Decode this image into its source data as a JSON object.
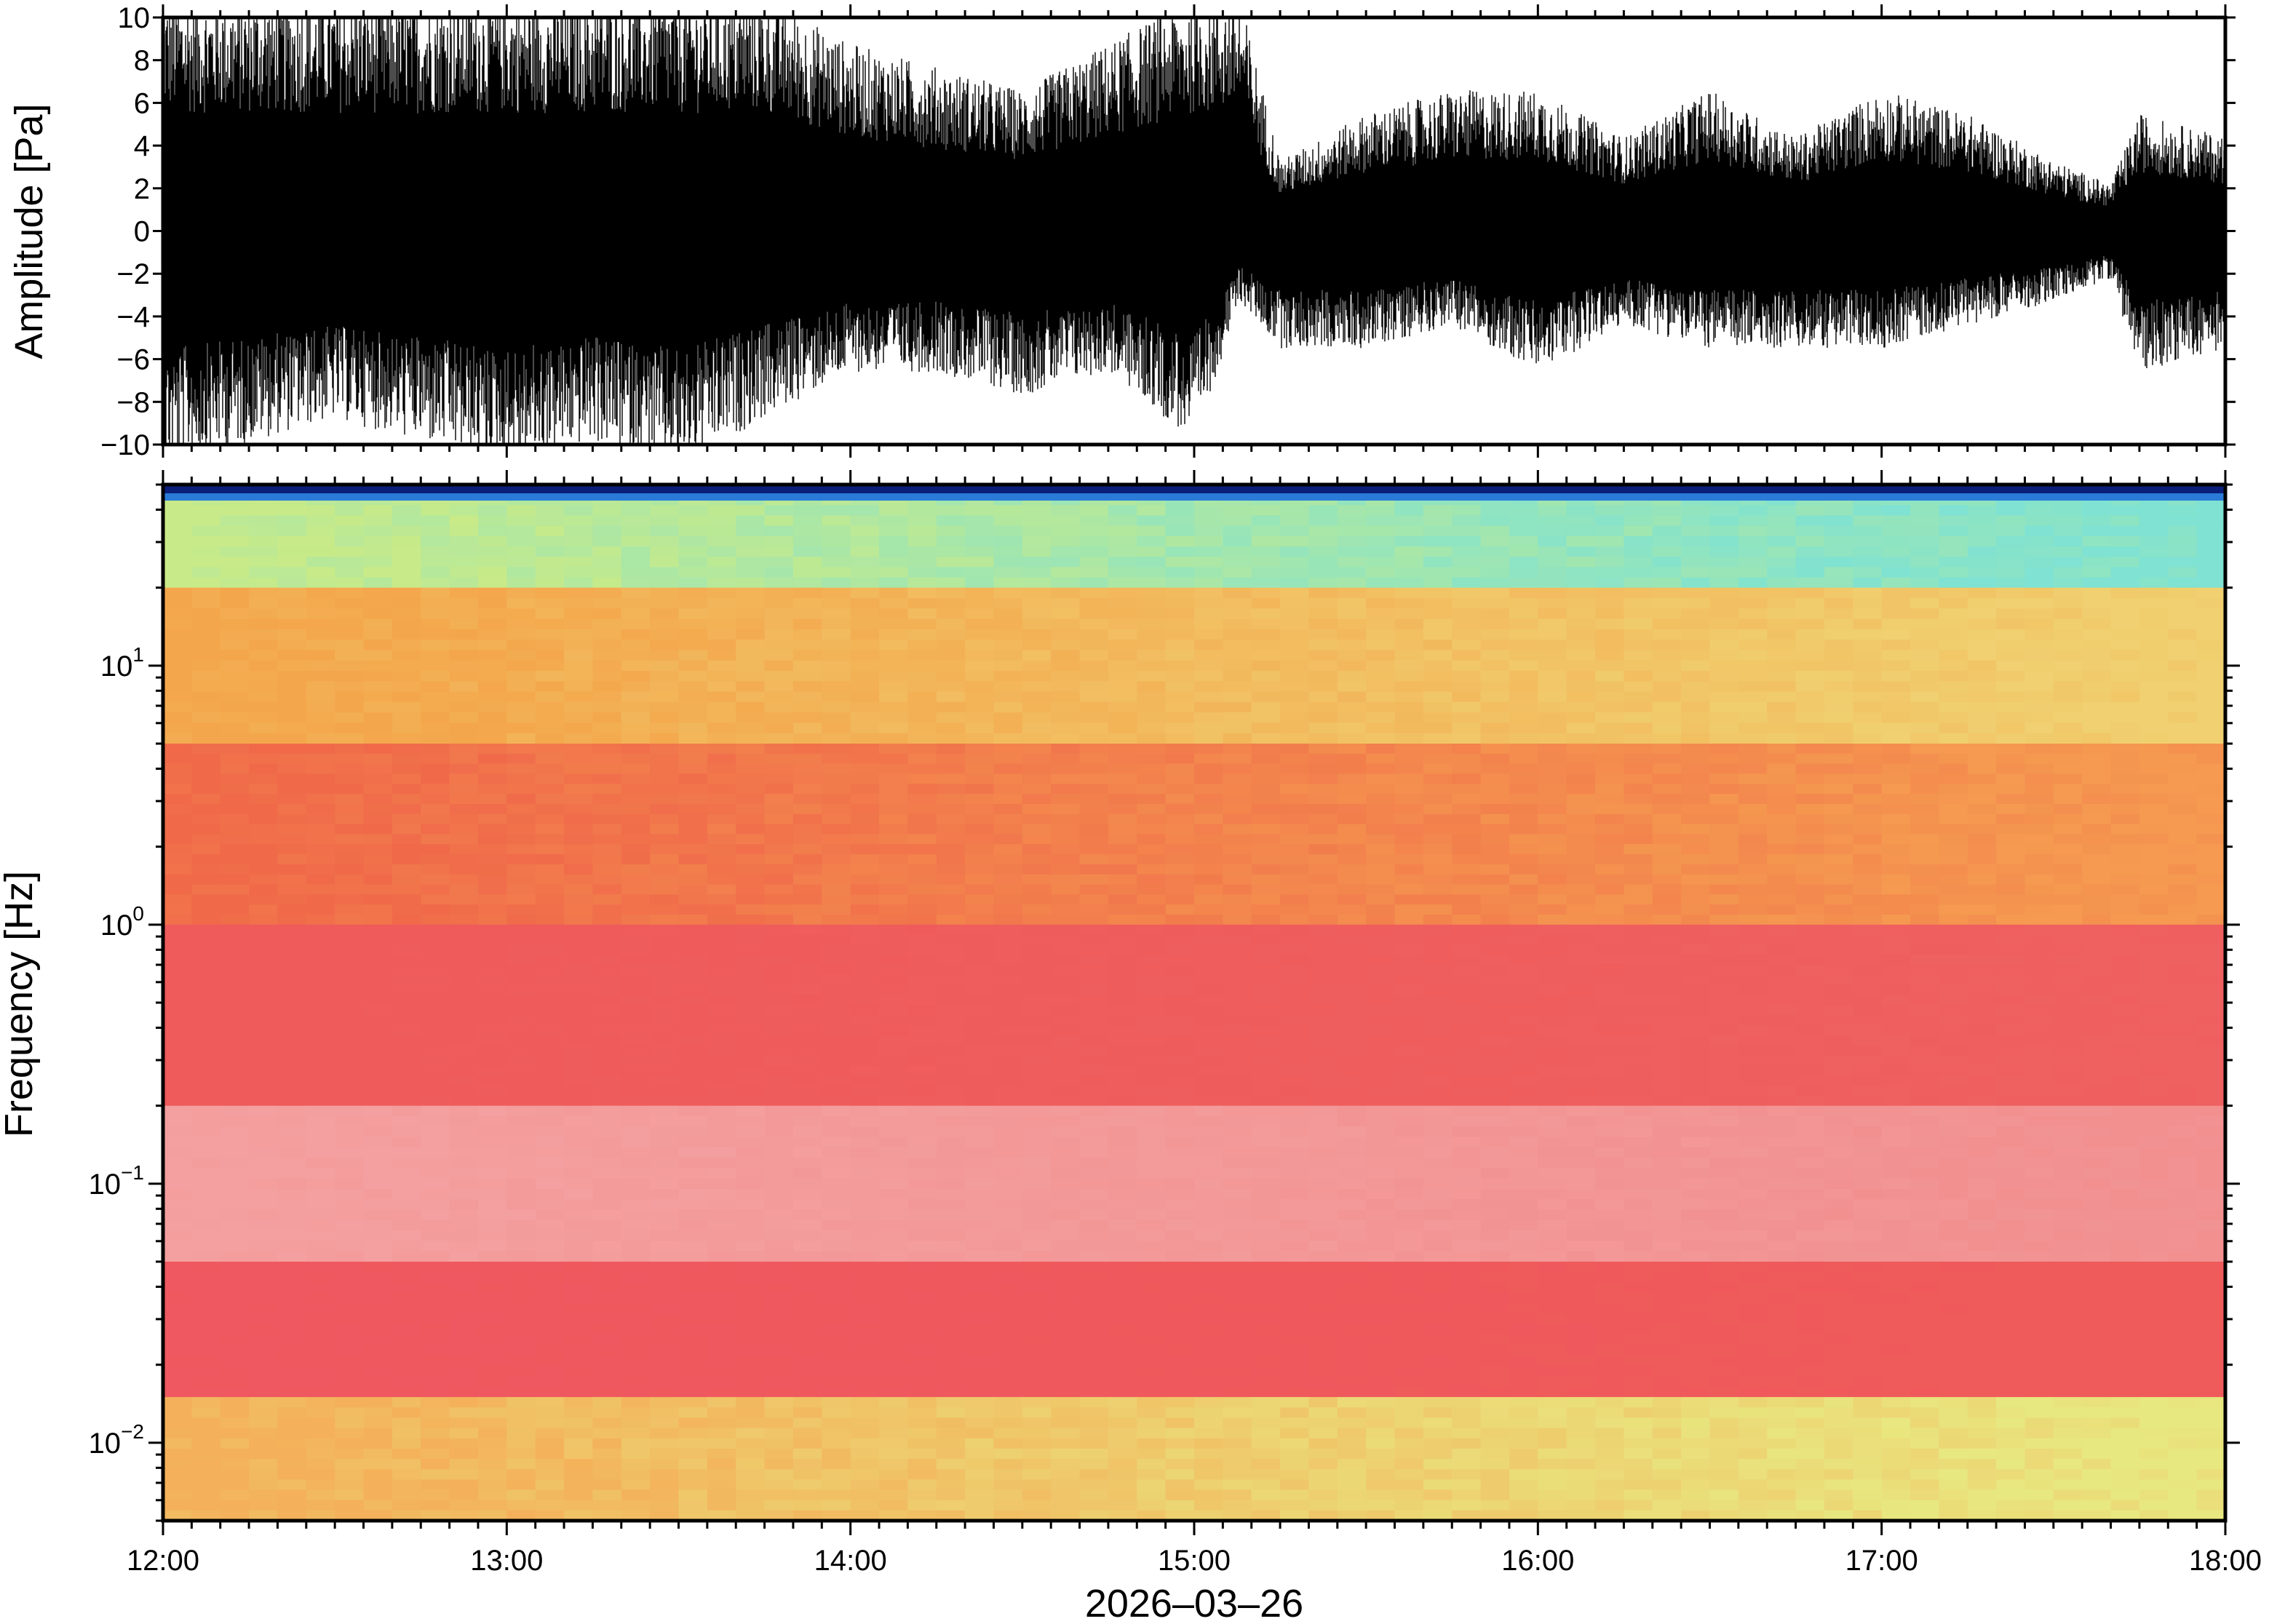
{
  "chart_data": [
    {
      "panel": "waveform",
      "type": "line",
      "title": "",
      "xlabel": "",
      "ylabel": "Amplitude [Pa]",
      "ylim": [
        -10,
        10
      ],
      "yticks": [
        -10,
        -8,
        -6,
        -4,
        -2,
        0,
        2,
        4,
        6,
        8,
        10
      ],
      "ytick_labels": [
        "−10",
        "−8",
        "−6",
        "−4",
        "−2",
        "0",
        "2",
        "4",
        "6",
        "8",
        "10"
      ],
      "xlim": [
        "12:00",
        "18:00"
      ],
      "series": [
        {
          "color": "#000000",
          "x": [
            "12:00",
            "12:15",
            "12:30",
            "12:45",
            "13:00",
            "13:15",
            "13:30",
            "13:45",
            "14:00",
            "14:15",
            "14:30",
            "14:45",
            "15:00",
            "15:08",
            "15:15",
            "15:30",
            "15:45",
            "16:00",
            "16:15",
            "16:30",
            "16:45",
            "17:00",
            "17:15",
            "17:30",
            "17:40",
            "17:45",
            "18:00"
          ],
          "upper_envelope": [
            10,
            10,
            10,
            10,
            10,
            10,
            10,
            10,
            8,
            7,
            6,
            8,
            10,
            10,
            3,
            5,
            6,
            6,
            4,
            6,
            4,
            6,
            5,
            3,
            2,
            5,
            4
          ],
          "lower_envelope": [
            -10,
            -9,
            -8,
            -9,
            -10,
            -9,
            -10,
            -8,
            -6,
            -6,
            -7,
            -6,
            -9,
            -3,
            -5,
            -5,
            -4,
            -6,
            -4,
            -5,
            -5,
            -5,
            -4,
            -3,
            -2,
            -6,
            -5
          ]
        }
      ]
    },
    {
      "panel": "spectrogram",
      "type": "heatmap",
      "title": "",
      "ylabel": "Frequency [Hz]",
      "xlabel": "2026–03–26",
      "yscale": "log",
      "ylim": [
        0.005,
        50
      ],
      "yticks": [
        0.01,
        0.1,
        1,
        10
      ],
      "ytick_labels": [
        {
          "base": "10",
          "exp": "−2"
        },
        {
          "base": "10",
          "exp": "−1"
        },
        {
          "base": "10",
          "exp": "0"
        },
        {
          "base": "10",
          "exp": "1"
        }
      ],
      "xticks": [
        "12:00",
        "13:00",
        "14:00",
        "15:00",
        "16:00",
        "17:00",
        "18:00"
      ],
      "colormap": [
        "#0b1f7a",
        "#2a7bd8",
        "#5fd6e0",
        "#d8f090",
        "#f4c850",
        "#f47a3c",
        "#ef5a5a",
        "#f7b8b8"
      ],
      "frequency_bands": [
        {
          "f_low": 20,
          "f_high": 50,
          "color_early": "#c8ea88",
          "color_late": "#7fe2d2"
        },
        {
          "f_low": 5,
          "f_high": 20,
          "color_early": "#f4a64c",
          "color_late": "#f0d070"
        },
        {
          "f_low": 1,
          "f_high": 5,
          "color_early": "#f06a4a",
          "color_late": "#f59a50"
        },
        {
          "f_low": 0.2,
          "f_high": 1,
          "color_early": "#ef5a5a",
          "color_late": "#ef6060"
        },
        {
          "f_low": 0.05,
          "f_high": 0.2,
          "color_early": "#f4a0a0",
          "color_late": "#f29090"
        },
        {
          "f_low": 0.015,
          "f_high": 0.05,
          "color_early": "#ef5860",
          "color_late": "#ef5a5a"
        },
        {
          "f_low": 0.005,
          "f_high": 0.015,
          "color_early": "#f4b05a",
          "color_late": "#e8e880"
        }
      ]
    }
  ]
}
